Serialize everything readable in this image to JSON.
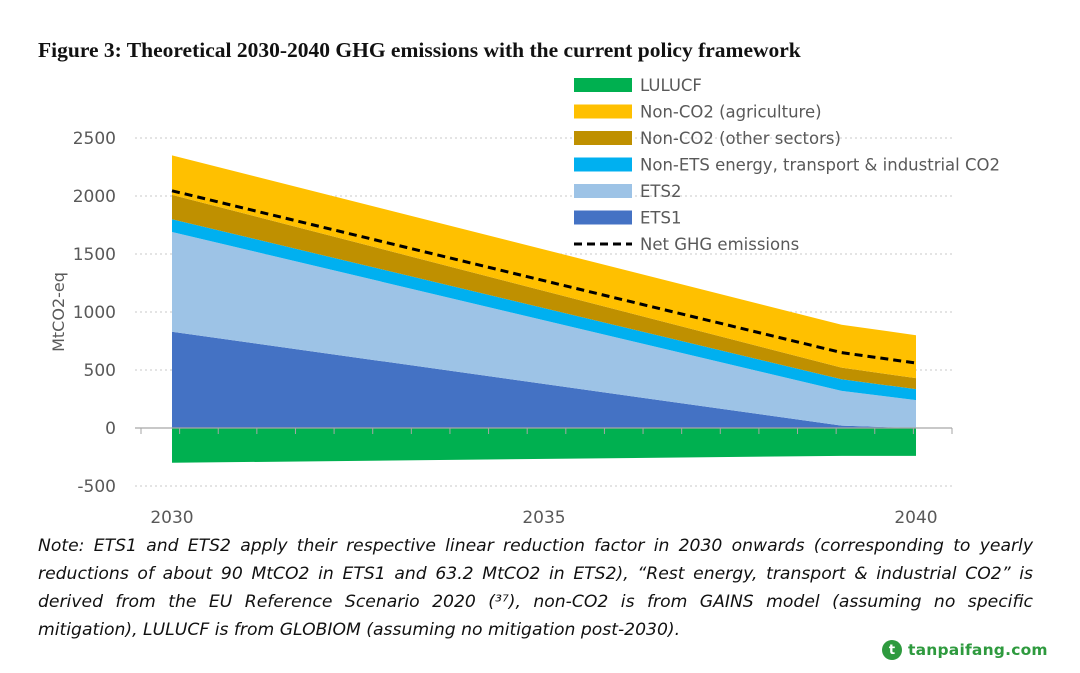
{
  "title": "Figure 3: Theoretical 2030-2040 GHG emissions with the current policy framework",
  "note": "Note: ETS1 and ETS2 apply their respective linear reduction factor in 2030 onwards (corresponding to yearly reductions of about 90 MtCO2 in ETS1 and 63.2 MtCO2 in ETS2), “Rest energy, transport & industrial CO2” is derived from the EU Reference Scenario 2020 (³⁷), non-CO2 is from GAINS model (assuming no specific mitigation), LULUCF is from GLOBIOM (assuming no mitigation post-2030).",
  "watermark": {
    "logo": "t",
    "text": "tanpaifang.com",
    "color": "#2e9a3e"
  },
  "chart_data": {
    "type": "area",
    "stacked": true,
    "ylabel": "MtCO2-eq",
    "xlabel": "",
    "xlim": [
      2030,
      2040
    ],
    "ylim": [
      -500,
      2500
    ],
    "xticks": [
      2030,
      2035,
      2040
    ],
    "yticks": [
      2500,
      2000,
      1500,
      1000,
      500,
      0,
      -500
    ],
    "grid": "horizontal-dotted",
    "legend_position": "top-right",
    "x": [
      2030,
      2039,
      2040
    ],
    "series": [
      {
        "name": "ETS1",
        "color": "#4472c4",
        "values": [
          830,
          20,
          0
        ]
      },
      {
        "name": "ETS2",
        "color": "#9dc3e6",
        "values": [
          860,
          300,
          240
        ]
      },
      {
        "name": "Non-ETS energy, transport & industrial CO2",
        "color": "#00b0f0",
        "values": [
          110,
          100,
          95
        ]
      },
      {
        "name": "Non-CO2 (other sectors)",
        "color": "#bf9000",
        "values": [
          210,
          100,
          95
        ]
      },
      {
        "name": "Non-CO2 (agriculture)",
        "color": "#ffc000",
        "values": [
          340,
          370,
          370
        ]
      },
      {
        "name": "LULUCF",
        "color": "#00b050",
        "values": [
          -300,
          -240,
          -240
        ]
      }
    ],
    "net": {
      "name": "Net GHG emissions",
      "x": [
        2030,
        2039,
        2040
      ],
      "values": [
        2045,
        650,
        560
      ],
      "color": "#000000",
      "dash": true
    },
    "legend": [
      {
        "label": "LULUCF",
        "color": "#00b050",
        "kind": "box"
      },
      {
        "label": "Non-CO2 (agriculture)",
        "color": "#ffc000",
        "kind": "box"
      },
      {
        "label": "Non-CO2 (other sectors)",
        "color": "#bf9000",
        "kind": "box"
      },
      {
        "label": "Non-ETS energy, transport & industrial CO2",
        "color": "#00b0f0",
        "kind": "box"
      },
      {
        "label": "ETS2",
        "color": "#9dc3e6",
        "kind": "box"
      },
      {
        "label": "ETS1",
        "color": "#4472c4",
        "kind": "box"
      },
      {
        "label": "Net GHG emissions",
        "color": "#000000",
        "kind": "dash"
      }
    ],
    "grid_color": "#c8c8c8",
    "axis_color": "#a6a6a6",
    "text_color": "#595959"
  }
}
